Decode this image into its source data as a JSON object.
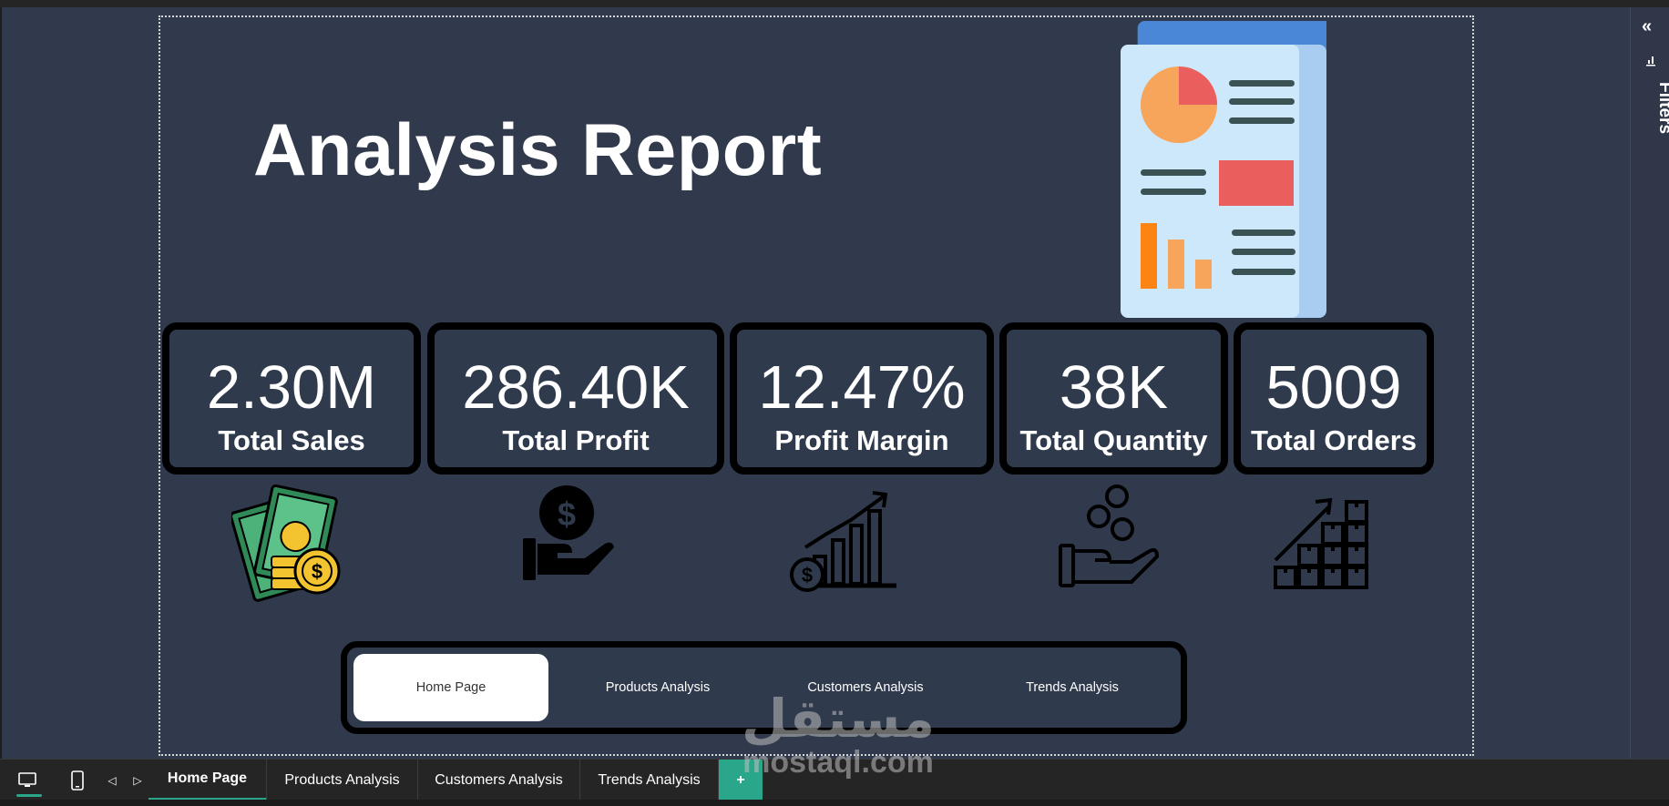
{
  "report": {
    "title": "Analysis Report"
  },
  "kpis": [
    {
      "value": "2.30M",
      "label": "Total Sales"
    },
    {
      "value": "286.40K",
      "label": "Total Profit"
    },
    {
      "value": "12.47%",
      "label": "Profit Margin"
    },
    {
      "value": "38K",
      "label": "Total Quantity"
    },
    {
      "value": "5009",
      "label": "Total Orders"
    }
  ],
  "kpi_icons": [
    "money-stack-icon",
    "profit-hand-icon",
    "growth-chart-icon",
    "coins-hand-icon",
    "boxes-growth-icon"
  ],
  "nav": {
    "buttons": [
      {
        "label": "Home Page",
        "active": true
      },
      {
        "label": "Products Analysis",
        "active": false
      },
      {
        "label": "Customers Analysis",
        "active": false
      },
      {
        "label": "Trends Analysis",
        "active": false
      }
    ]
  },
  "filters_pane": {
    "collapse_icon": "double-chevron-left-icon",
    "label": "Filters"
  },
  "page_tabs": [
    {
      "label": "Home Page",
      "active": true
    },
    {
      "label": "Products Analysis",
      "active": false
    },
    {
      "label": "Customers Analysis",
      "active": false
    },
    {
      "label": "Trends Analysis",
      "active": false
    }
  ],
  "add_tab_label": "+",
  "view_icons": [
    "desktop-view-icon",
    "mobile-view-icon",
    "prev-page-icon",
    "next-page-icon"
  ],
  "watermark": {
    "arabic": "مستقل",
    "latin": "mostaql.com"
  },
  "colors": {
    "canvas_bg": "#313a4d",
    "accent": "#2aa78b",
    "card_border": "#000000",
    "text": "#ffffff"
  }
}
